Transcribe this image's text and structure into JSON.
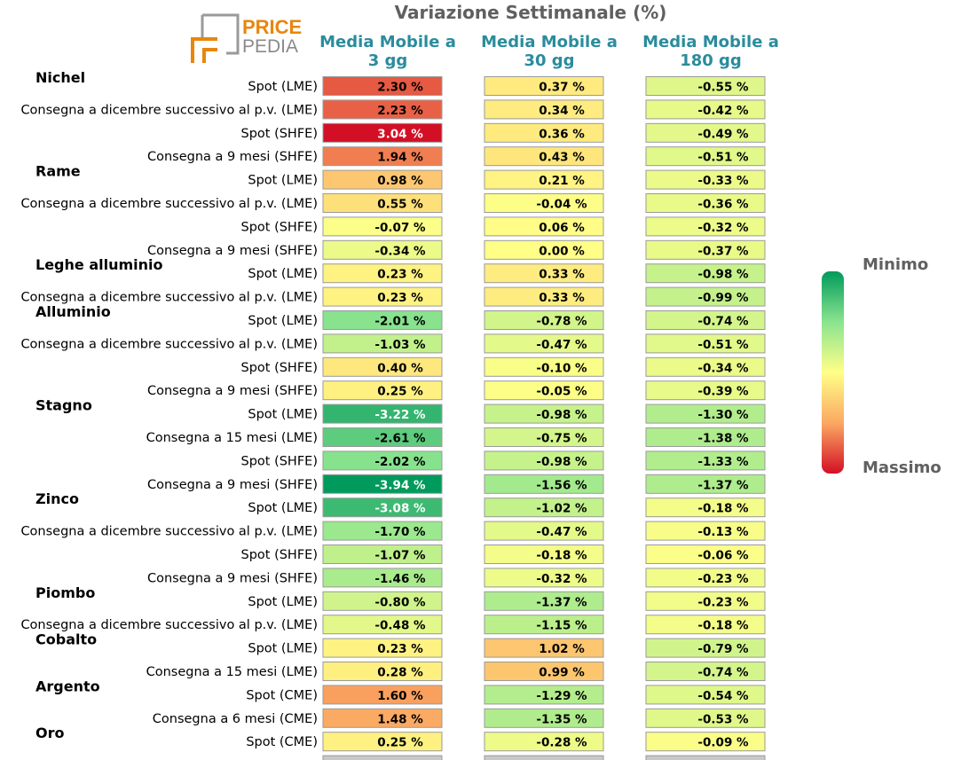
{
  "logo": {
    "line1": "PRICE",
    "line2": "PEDIA"
  },
  "chart_data": {
    "type": "table",
    "title": "Variazione Settimanale (%)",
    "columns": [
      {
        "line1": "Media Mobile a",
        "line2": "3 gg"
      },
      {
        "line1": "Media Mobile a",
        "line2": "30 gg"
      },
      {
        "line1": "Media Mobile a",
        "line2": "180 gg"
      }
    ],
    "unit": "%",
    "color_range": [
      -3.94,
      3.04
    ],
    "groups": [
      {
        "name": "Nichel",
        "rows": [
          {
            "label": "Spot (LME)",
            "values": [
              2.3,
              0.37,
              -0.55
            ]
          },
          {
            "label": "Consegna a dicembre successivo al p.v. (LME)",
            "values": [
              2.23,
              0.34,
              -0.42
            ]
          },
          {
            "label": "Spot (SHFE)",
            "values": [
              3.04,
              0.36,
              -0.49
            ]
          },
          {
            "label": "Consegna a 9 mesi (SHFE)",
            "values": [
              1.94,
              0.43,
              -0.51
            ]
          }
        ]
      },
      {
        "name": "Rame",
        "rows": [
          {
            "label": "Spot (LME)",
            "values": [
              0.98,
              0.21,
              -0.33
            ]
          },
          {
            "label": "Consegna a dicembre successivo al p.v. (LME)",
            "values": [
              0.55,
              -0.04,
              -0.36
            ]
          },
          {
            "label": "Spot (SHFE)",
            "values": [
              -0.07,
              0.06,
              -0.32
            ]
          },
          {
            "label": "Consegna a 9 mesi (SHFE)",
            "values": [
              -0.34,
              0.0,
              -0.37
            ]
          }
        ]
      },
      {
        "name": "Leghe alluminio",
        "rows": [
          {
            "label": "Spot (LME)",
            "values": [
              0.23,
              0.33,
              -0.98
            ]
          },
          {
            "label": "Consegna a dicembre successivo al p.v. (LME)",
            "values": [
              0.23,
              0.33,
              -0.99
            ]
          }
        ]
      },
      {
        "name": "Alluminio",
        "rows": [
          {
            "label": "Spot (LME)",
            "values": [
              -2.01,
              -0.78,
              -0.74
            ]
          },
          {
            "label": "Consegna a dicembre successivo al p.v. (LME)",
            "values": [
              -1.03,
              -0.47,
              -0.51
            ]
          },
          {
            "label": "Spot (SHFE)",
            "values": [
              0.4,
              -0.1,
              -0.34
            ]
          },
          {
            "label": "Consegna a 9 mesi (SHFE)",
            "values": [
              0.25,
              -0.05,
              -0.39
            ]
          }
        ]
      },
      {
        "name": "Stagno",
        "rows": [
          {
            "label": "Spot (LME)",
            "values": [
              -3.22,
              -0.98,
              -1.3
            ]
          },
          {
            "label": "Consegna a 15 mesi (LME)",
            "values": [
              -2.61,
              -0.75,
              -1.38
            ]
          },
          {
            "label": "Spot (SHFE)",
            "values": [
              -2.02,
              -0.98,
              -1.33
            ]
          },
          {
            "label": "Consegna a 9 mesi (SHFE)",
            "values": [
              -3.94,
              -1.56,
              -1.37
            ]
          }
        ]
      },
      {
        "name": "Zinco",
        "rows": [
          {
            "label": "Spot (LME)",
            "values": [
              -3.08,
              -1.02,
              -0.18
            ]
          },
          {
            "label": "Consegna a dicembre successivo al p.v. (LME)",
            "values": [
              -1.7,
              -0.47,
              -0.13
            ]
          },
          {
            "label": "Spot (SHFE)",
            "values": [
              -1.07,
              -0.18,
              -0.06
            ]
          },
          {
            "label": "Consegna a 9 mesi (SHFE)",
            "values": [
              -1.46,
              -0.32,
              -0.23
            ]
          }
        ]
      },
      {
        "name": "Piombo",
        "rows": [
          {
            "label": "Spot (LME)",
            "values": [
              -0.8,
              -1.37,
              -0.23
            ]
          },
          {
            "label": "Consegna a dicembre successivo al p.v. (LME)",
            "values": [
              -0.48,
              -1.15,
              -0.18
            ]
          }
        ]
      },
      {
        "name": "Cobalto",
        "rows": [
          {
            "label": "Spot (LME)",
            "values": [
              0.23,
              1.02,
              -0.79
            ]
          },
          {
            "label": "Consegna a 15 mesi (LME)",
            "values": [
              0.28,
              0.99,
              -0.74
            ]
          }
        ]
      },
      {
        "name": "Argento",
        "rows": [
          {
            "label": "Spot (CME)",
            "values": [
              1.6,
              -1.29,
              -0.54
            ]
          },
          {
            "label": "Consegna a 6 mesi (CME)",
            "values": [
              1.48,
              -1.35,
              -0.53
            ]
          }
        ]
      },
      {
        "name": "Oro",
        "rows": [
          {
            "label": "Spot (CME)",
            "values": [
              0.25,
              -0.28,
              -0.09
            ]
          }
        ]
      }
    ],
    "legend": {
      "min_label": "Minimo",
      "max_label": "Massimo"
    }
  },
  "colors": {
    "title": "#606060",
    "column_header": "#2a8c9c",
    "logo_orange": "#e8860c",
    "logo_gray": "#8a8a8a",
    "legend_text": "#606060",
    "cell_border": "#9a9a9a"
  }
}
